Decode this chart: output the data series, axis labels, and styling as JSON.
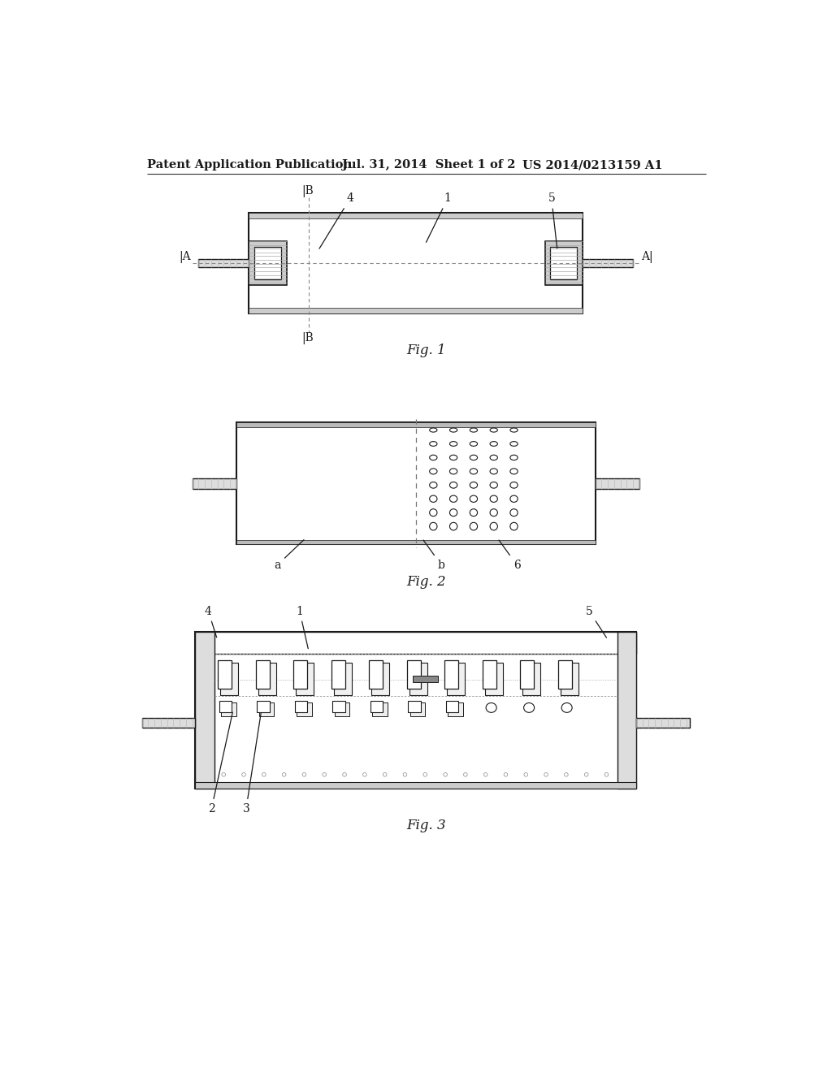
{
  "background_color": "#ffffff",
  "header_text": "Patent Application Publication",
  "header_date": "Jul. 31, 2014  Sheet 1 of 2",
  "header_patent": "US 2014/0213159 A1",
  "fig1_label": "Fig. 1",
  "fig2_label": "Fig. 2",
  "fig3_label": "Fig. 3",
  "lc": "#1a1a1a",
  "gray": "#aaaaaa",
  "dark": "#444444"
}
